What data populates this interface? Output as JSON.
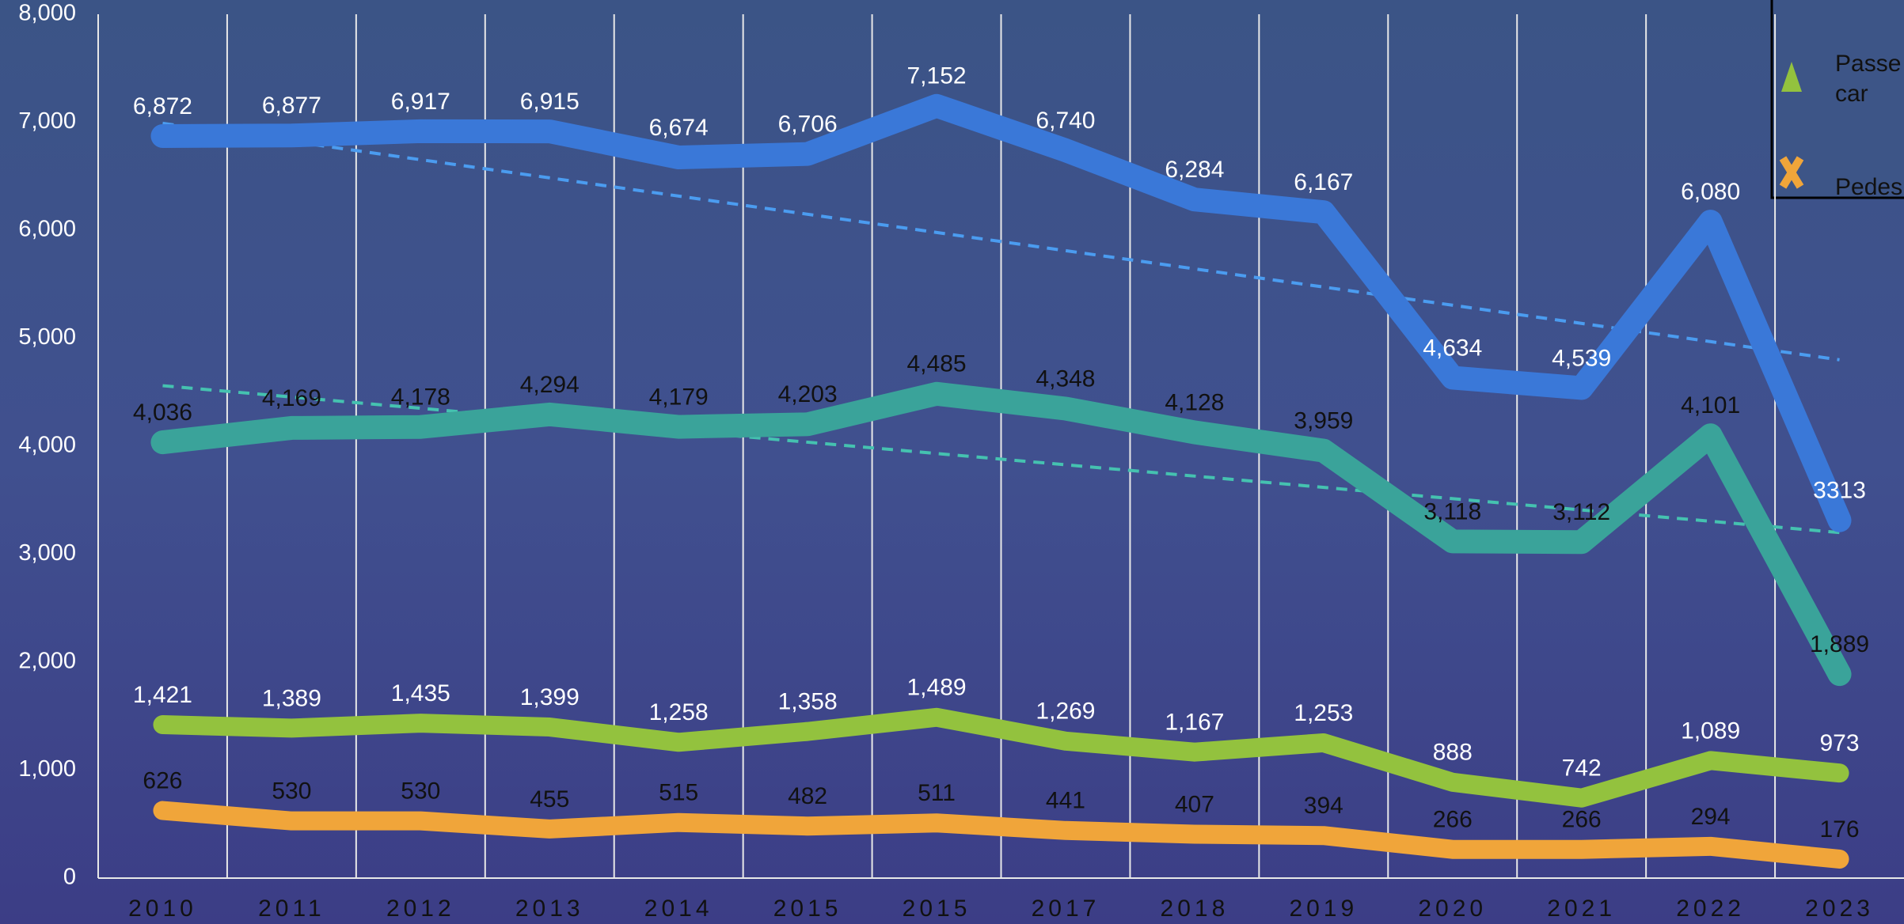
{
  "chart_data": {
    "type": "line",
    "categories": [
      "2010",
      "2011",
      "2012",
      "2013",
      "2014",
      "2015",
      "2015",
      "2017",
      "2018",
      "2019",
      "2020",
      "2021",
      "2022",
      "2023"
    ],
    "ylim": [
      0,
      8000
    ],
    "yticks": [
      0,
      {
        "value": 1000,
        "label": "1,000"
      },
      {
        "value": 2000,
        "label": "2,000"
      },
      {
        "value": 3000,
        "label": "3,000"
      },
      {
        "value": 4000,
        "label": "4,000"
      },
      {
        "value": 5000,
        "label": "5,000"
      },
      {
        "value": 6000,
        "label": "6,000"
      },
      {
        "value": 7000,
        "label": "7,000"
      },
      {
        "value": 8000,
        "label": "8,000"
      }
    ],
    "grid": true,
    "legend": "top-right",
    "series": [
      {
        "color": "#3a78d8",
        "label_color": "#ffffff",
        "values": [
          6872,
          6877,
          6917,
          6915,
          6674,
          6706,
          7152,
          6740,
          6284,
          6167,
          4634,
          4539,
          6080,
          3313
        ],
        "value_labels": [
          "6,872",
          "6,877",
          "6,917",
          "6,915",
          "6,674",
          "6,706",
          "7,152",
          "6,740",
          "6,284",
          "6,167",
          "4,634",
          "4,539",
          "6,080",
          "3313"
        ],
        "trend": [
          6990,
          4800
        ]
      },
      {
        "color": "#3aa39a",
        "label_color": "#111111",
        "values": [
          4036,
          4169,
          4178,
          4294,
          4179,
          4203,
          4485,
          4348,
          4128,
          3959,
          3118,
          3112,
          4101,
          1889
        ],
        "value_labels": [
          "4,036",
          "4,169",
          "4,178",
          "4,294",
          "4,179",
          "4,203",
          "4,485",
          "4,348",
          "4,128",
          "3,959",
          "3,118",
          "3,112",
          "4,101",
          "1,889"
        ],
        "trend": [
          4560,
          3200
        ]
      },
      {
        "name": "Passe car",
        "marker": "triangle",
        "color": "#93c23e",
        "label_color": "#ffffff",
        "values": [
          1421,
          1389,
          1435,
          1399,
          1258,
          1358,
          1489,
          1269,
          1167,
          1253,
          888,
          742,
          1089,
          973
        ],
        "value_labels": [
          "1,421",
          "1,389",
          "1,435",
          "1,399",
          "1,258",
          "1,358",
          "1,489",
          "1,269",
          "1,167",
          "1,253",
          "888",
          "742",
          "1,089",
          "973"
        ]
      },
      {
        "name": "Pedes",
        "marker": "cross",
        "color": "#f0a53a",
        "label_color": "#111111",
        "values": [
          626,
          530,
          530,
          455,
          515,
          482,
          511,
          441,
          407,
          394,
          266,
          266,
          294,
          176
        ]
      }
    ]
  }
}
